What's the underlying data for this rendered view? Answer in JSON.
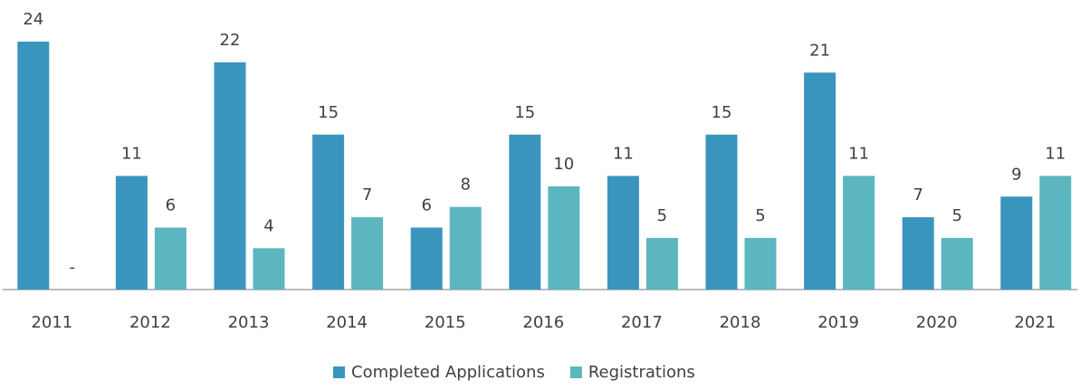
{
  "chart_data": {
    "type": "bar",
    "categories": [
      "2011",
      "2012",
      "2013",
      "2014",
      "2015",
      "2016",
      "2017",
      "2018",
      "2019",
      "2020",
      "2021"
    ],
    "series": [
      {
        "name": "Completed Applications",
        "color": "#3a95be",
        "values": [
          24,
          11,
          22,
          15,
          6,
          15,
          11,
          15,
          21,
          7,
          9
        ]
      },
      {
        "name": "Registrations",
        "color": "#5bb6bf",
        "values": [
          0,
          6,
          4,
          7,
          8,
          10,
          5,
          5,
          11,
          5,
          11
        ],
        "value_labels": [
          "-",
          "6",
          "4",
          "7",
          "8",
          "10",
          "5",
          "5",
          "11",
          "5",
          "11"
        ]
      }
    ],
    "legend": "bottom"
  }
}
